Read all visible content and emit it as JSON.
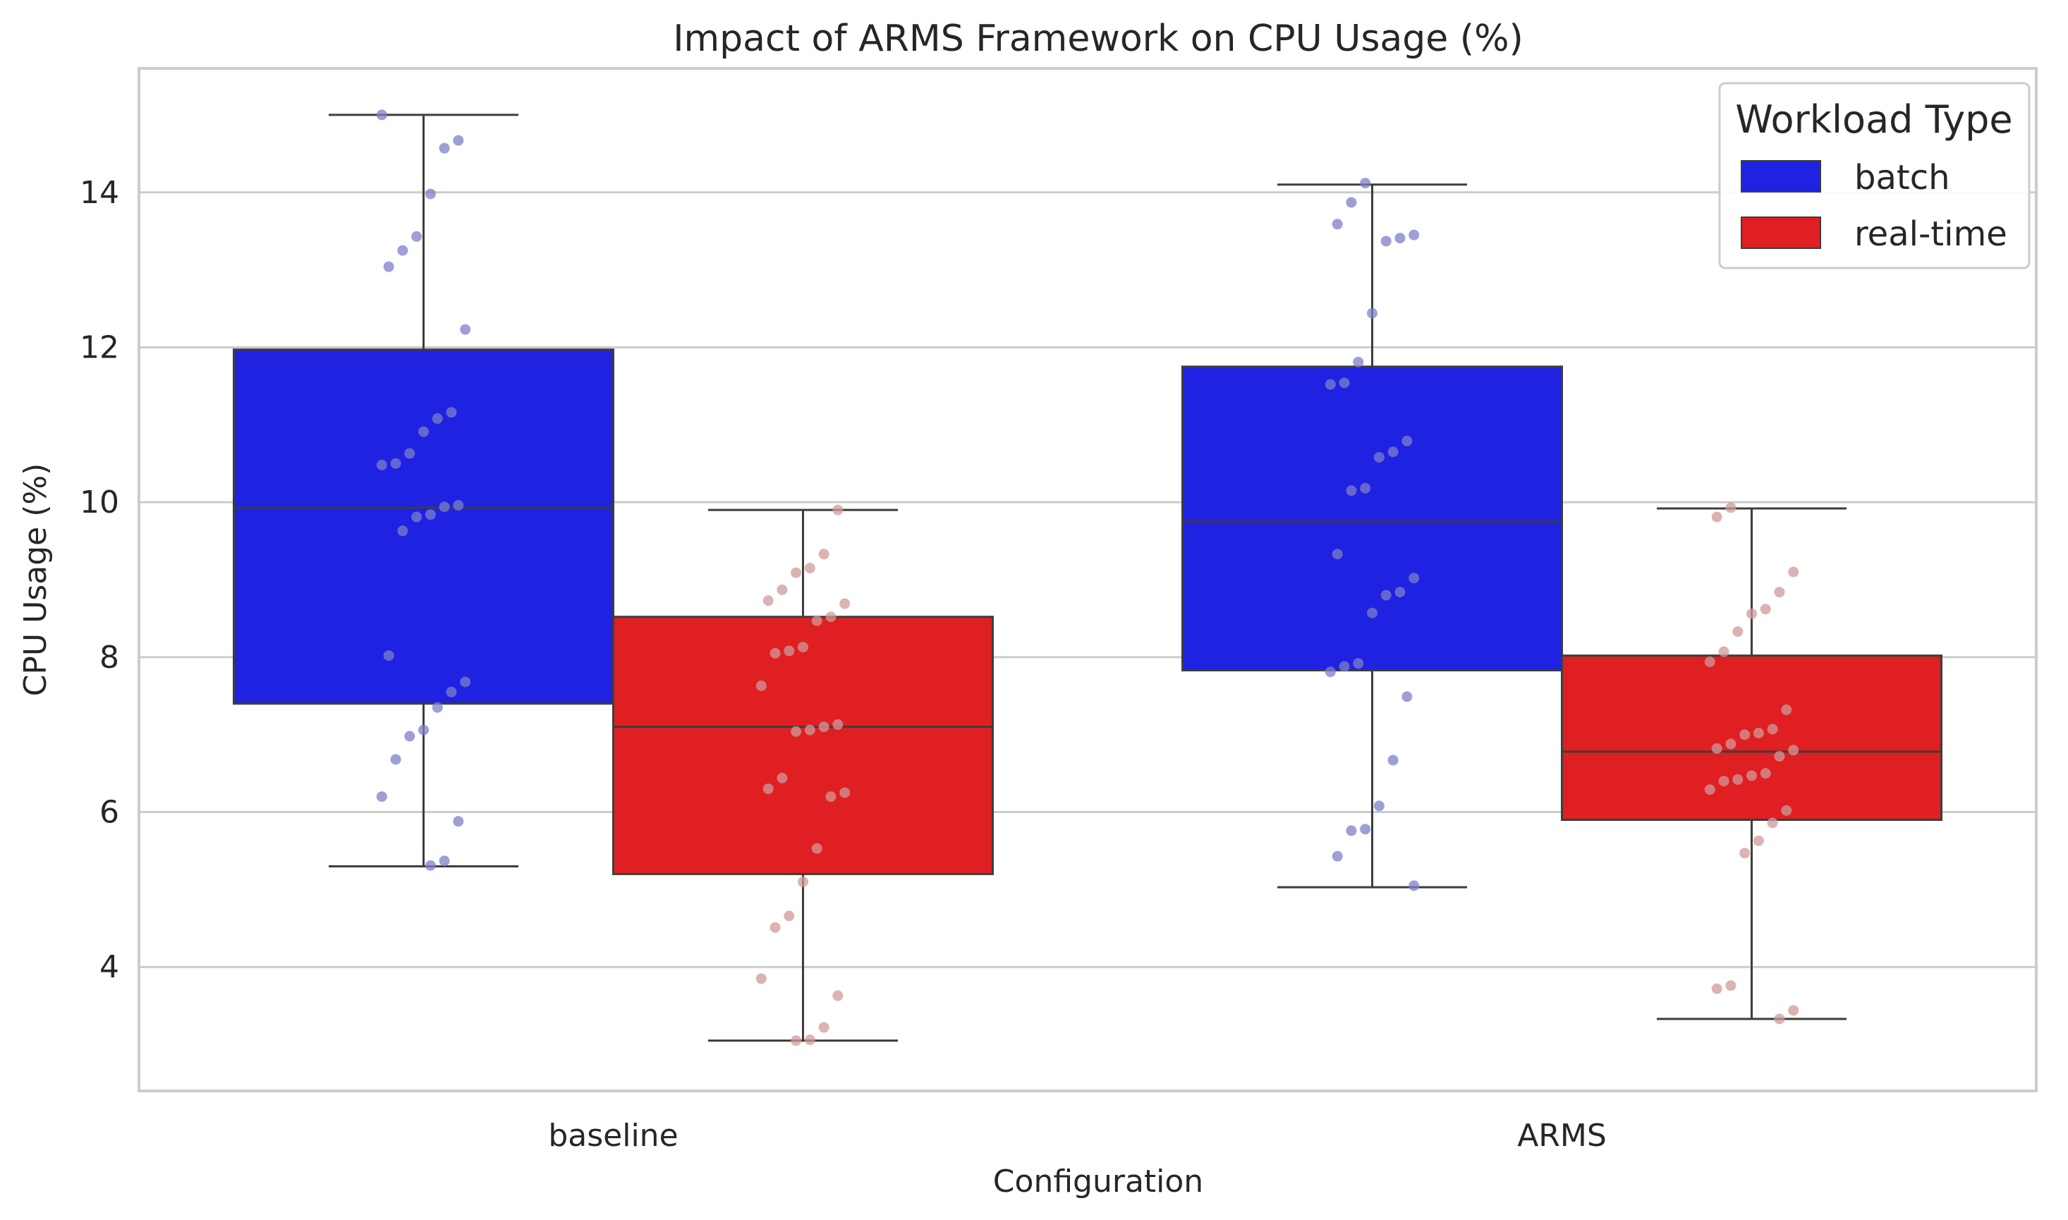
{
  "chart_data": {
    "type": "box",
    "title": "Impact of ARMS Framework on CPU Usage (%)",
    "xlabel": "Configuration",
    "ylabel": "CPU Usage (%)",
    "categories": [
      "baseline",
      "ARMS"
    ],
    "ylim": [
      2.4,
      15.6
    ],
    "yticks": [
      4,
      6,
      8,
      10,
      12,
      14
    ],
    "grid": "horizontal",
    "legend": {
      "title": "Workload Type",
      "placement": "top-right"
    },
    "series": [
      {
        "name": "batch",
        "color": "#1f22e1",
        "point_color": "#7c7fc8",
        "boxes": [
          {
            "category": "baseline",
            "whisker_low": 5.3,
            "q1": 7.4,
            "median": 9.93,
            "q3": 11.97,
            "whisker_high": 15.0
          },
          {
            "category": "ARMS",
            "whisker_low": 5.03,
            "q1": 7.83,
            "median": 9.75,
            "q3": 11.75,
            "whisker_high": 14.1
          }
        ],
        "points": [
          {
            "category": "baseline",
            "values": [
              15.0,
              14.67,
              14.57,
              13.98,
              13.43,
              13.25,
              13.04,
              12.23,
              11.16,
              11.08,
              10.91,
              10.63,
              10.5,
              10.48,
              9.96,
              9.94,
              9.84,
              9.81,
              9.63,
              8.02,
              7.68,
              7.55,
              7.35,
              7.06,
              6.98,
              6.68,
              6.2,
              5.88,
              5.37,
              5.31
            ]
          },
          {
            "category": "ARMS",
            "values": [
              14.12,
              13.87,
              13.59,
              13.45,
              13.41,
              13.37,
              12.44,
              11.81,
              11.54,
              11.52,
              10.79,
              10.65,
              10.58,
              10.18,
              10.15,
              9.33,
              9.02,
              8.84,
              8.8,
              8.57,
              7.92,
              7.88,
              7.81,
              7.49,
              6.67,
              6.08,
              5.78,
              5.76,
              5.43,
              5.05
            ]
          }
        ]
      },
      {
        "name": "real-time",
        "color": "#df1f22",
        "point_color": "#d09a9a",
        "boxes": [
          {
            "category": "baseline",
            "whisker_low": 3.05,
            "q1": 5.2,
            "median": 7.1,
            "q3": 8.52,
            "whisker_high": 9.9
          },
          {
            "category": "ARMS",
            "whisker_low": 3.33,
            "q1": 5.9,
            "median": 6.78,
            "q3": 8.02,
            "whisker_high": 9.92
          }
        ],
        "points": [
          {
            "category": "baseline",
            "values": [
              9.9,
              9.33,
              9.15,
              9.09,
              8.87,
              8.73,
              8.69,
              8.52,
              8.47,
              8.13,
              8.08,
              8.05,
              7.63,
              7.13,
              7.1,
              7.06,
              7.04,
              6.44,
              6.3,
              6.25,
              6.2,
              5.53,
              5.1,
              4.66,
              4.51,
              3.85,
              3.63,
              3.22,
              3.06,
              3.05
            ]
          },
          {
            "category": "ARMS",
            "values": [
              9.93,
              9.81,
              9.1,
              8.84,
              8.62,
              8.56,
              8.33,
              8.07,
              7.94,
              7.32,
              7.07,
              7.02,
              7.0,
              6.88,
              6.82,
              6.8,
              6.72,
              6.5,
              6.47,
              6.42,
              6.4,
              6.29,
              6.02,
              5.86,
              5.63,
              5.47,
              3.76,
              3.72,
              3.44,
              3.33
            ]
          }
        ]
      }
    ]
  }
}
